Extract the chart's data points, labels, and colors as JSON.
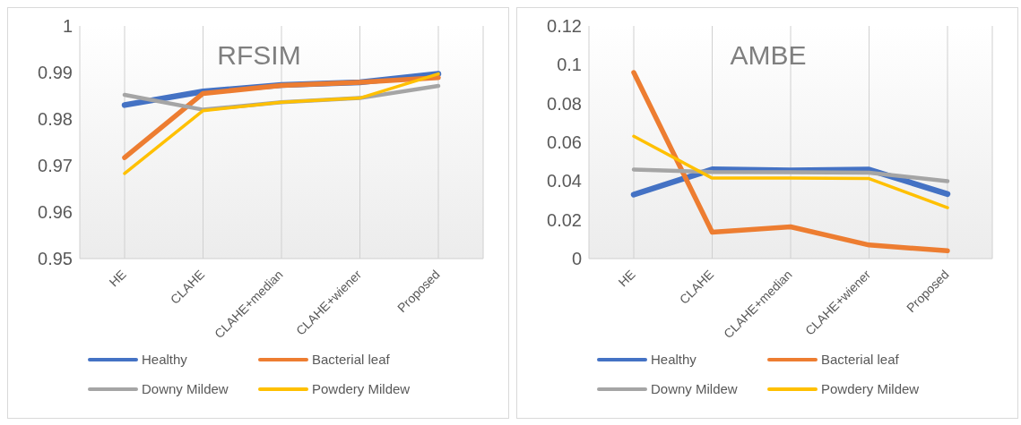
{
  "chart_data": [
    {
      "type": "line",
      "title": "RFSIM",
      "categories": [
        "HE",
        "CLAHE",
        "CLAHE+median",
        "CLAHE+wiener",
        "Proposed"
      ],
      "ylim": [
        0.95,
        1
      ],
      "yticks": [
        0.95,
        0.96,
        0.97,
        0.98,
        0.99,
        1
      ],
      "grid": "x",
      "legend": "bottom",
      "marker": "none",
      "series": [
        {
          "name": "Healthy",
          "color": "#4472c4",
          "values": [
            0.983,
            0.9859,
            0.9873,
            0.9879,
            0.9897
          ]
        },
        {
          "name": "Bacterial leaf",
          "color": "#ed7d31",
          "values": [
            0.9717,
            0.9855,
            0.9872,
            0.9879,
            0.9889
          ]
        },
        {
          "name": "Downy Mildew",
          "color": "#a5a5a5",
          "values": [
            0.9852,
            0.982,
            0.9836,
            0.9845,
            0.9871
          ]
        },
        {
          "name": "Powdery Mildew",
          "color": "#ffc000",
          "values": [
            0.9683,
            0.9818,
            0.9836,
            0.9845,
            0.9897
          ]
        }
      ]
    },
    {
      "type": "line",
      "title": "AMBE",
      "categories": [
        "HE",
        "CLAHE",
        "CLAHE+median",
        "CLAHE+wiener",
        "Proposed"
      ],
      "ylim": [
        0,
        0.12
      ],
      "yticks": [
        0,
        0.02,
        0.04,
        0.06,
        0.08,
        0.1,
        0.12
      ],
      "grid": "x",
      "legend": "bottom",
      "marker": "none",
      "series": [
        {
          "name": "Healthy",
          "color": "#4472c4",
          "values": [
            0.033,
            0.046,
            0.0455,
            0.0459,
            0.0333
          ]
        },
        {
          "name": "Bacterial leaf",
          "color": "#ed7d31",
          "values": [
            0.096,
            0.0136,
            0.0164,
            0.007,
            0.004
          ]
        },
        {
          "name": "Downy Mildew",
          "color": "#a5a5a5",
          "values": [
            0.0459,
            0.0447,
            0.0445,
            0.0443,
            0.0399
          ]
        },
        {
          "name": "Powdery Mildew",
          "color": "#ffc000",
          "values": [
            0.0631,
            0.0415,
            0.0415,
            0.0413,
            0.0263
          ]
        }
      ]
    }
  ]
}
